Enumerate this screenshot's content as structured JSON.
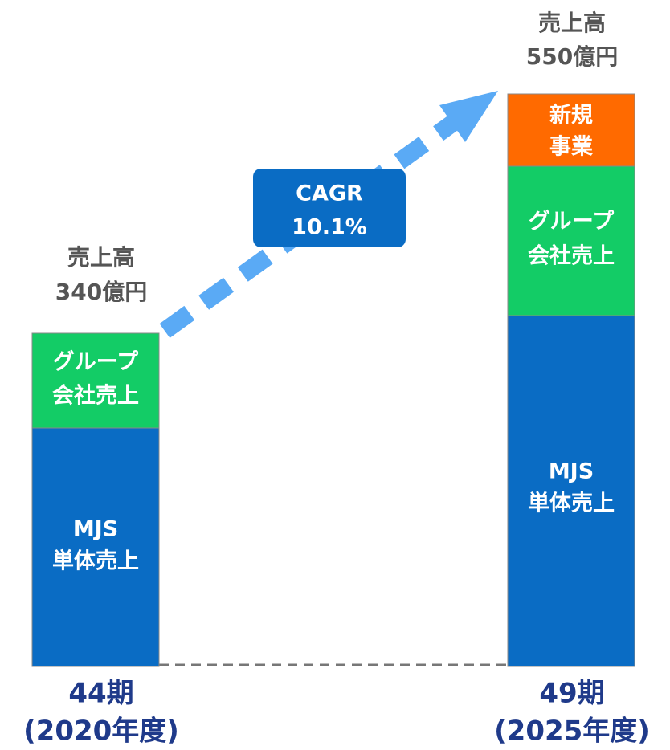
{
  "bars": [
    {
      "total": [
        "売上高",
        "340億円"
      ],
      "segments": [
        {
          "label": [
            "グループ",
            "会社売上"
          ]
        },
        {
          "label": [
            "MJS",
            "単体売上"
          ]
        }
      ],
      "period": [
        "44期",
        "(2020年度)"
      ]
    },
    {
      "total": [
        "売上高",
        "550億円"
      ],
      "segments": [
        {
          "label": [
            "新規",
            "事業"
          ]
        },
        {
          "label": [
            "グループ",
            "会社売上"
          ]
        },
        {
          "label": [
            "MJS",
            "単体売上"
          ]
        }
      ],
      "period": [
        "49期",
        "(2025年度)"
      ]
    }
  ],
  "cagr": [
    "CAGR",
    "10.1%"
  ]
}
